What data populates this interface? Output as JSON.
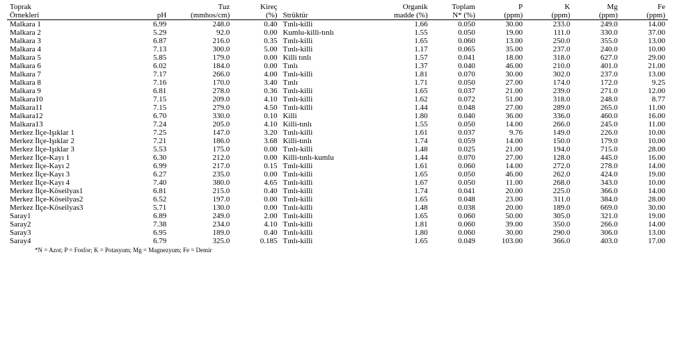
{
  "table": {
    "columns": [
      {
        "key": "name",
        "line1": "Toprak",
        "line2": "Örnekleri",
        "align": "left",
        "col_class": "c-name"
      },
      {
        "key": "ph",
        "line1": "",
        "line2": "pH",
        "align": "right",
        "col_class": "c-ph"
      },
      {
        "key": "tuz",
        "line1": "Tuz",
        "line2": "(mmhos/cm)",
        "align": "right",
        "col_class": "c-tuz"
      },
      {
        "key": "kirec",
        "line1": "Kireç",
        "line2": "(%)",
        "align": "right",
        "col_class": "c-kirec"
      },
      {
        "key": "struk",
        "line1": "",
        "line2": "Strüktür",
        "align": "left",
        "col_class": "c-struk"
      },
      {
        "key": "org",
        "line1": "Organik",
        "line2": "madde (%)",
        "align": "right",
        "col_class": "c-org",
        "line2a": "madde",
        "line2b": "(%)"
      },
      {
        "key": "n",
        "line1": "Toplam",
        "line2": "N* (%)",
        "align": "right",
        "col_class": "c-n",
        "line2a": "N*",
        "line2b": "(%)"
      },
      {
        "key": "p",
        "line1": "P",
        "line2": "(ppm)",
        "align": "right",
        "col_class": "c-p"
      },
      {
        "key": "k",
        "line1": "K",
        "line2": "(ppm)",
        "align": "right",
        "col_class": "c-k"
      },
      {
        "key": "mg",
        "line1": "Mg",
        "line2": "(ppm)",
        "align": "right",
        "col_class": "c-mg"
      },
      {
        "key": "fe",
        "line1": "Fe",
        "line2": "(ppm)",
        "align": "right",
        "col_class": "c-fe"
      }
    ],
    "header_lines": {
      "org_l1": "Organik",
      "org_l2a": "madde",
      "org_l2b": "(%)",
      "n_l1": "Toplam",
      "n_l2a": "N*",
      "n_l2b": "(%)"
    },
    "rows": [
      [
        "Malkara 1",
        "6.99",
        "248.0",
        "0.40",
        "Tınlı-killi",
        "1.66",
        "0.050",
        "30.00",
        "233.0",
        "249.0",
        "14.00"
      ],
      [
        "Malkara 2",
        "5.29",
        "92.0",
        "0.00",
        "Kumlu-killi-tınlı",
        "1.55",
        "0.050",
        "19.00",
        "111.0",
        "330.0",
        "37.00"
      ],
      [
        "Malkara 3",
        "6.87",
        "216.0",
        "0.35",
        "Tınlı-killi",
        "1.65",
        "0.060",
        "13.00",
        "250.0",
        "355.0",
        "13.00"
      ],
      [
        "Malkara 4",
        "7.13",
        "300.0",
        "5.00",
        "Tınlı-killi",
        "1.17",
        "0.065",
        "35.00",
        "237.0",
        "240.0",
        "10.00"
      ],
      [
        "Malkara 5",
        "5.85",
        "179.0",
        "0.00",
        "Killi tınlı",
        "1.57",
        "0.041",
        "18.00",
        "318.0",
        "627.0",
        "29.00"
      ],
      [
        "Malkara 6",
        "6.02",
        "184.0",
        "0.00",
        "Tınlı",
        "1.37",
        "0.040",
        "46.00",
        "210.0",
        "401.0",
        "21.00"
      ],
      [
        "Malkara 7",
        "7.17",
        "266.0",
        "4.00",
        "Tınlı-killi",
        "1.81",
        "0.070",
        "30.00",
        "302.0",
        "237.0",
        "13.00"
      ],
      [
        "Malkara 8",
        "7.16",
        "170.0",
        "3.40",
        "Tınlı",
        "1.71",
        "0.050",
        "27.00",
        "174.0",
        "172.0",
        "9.25"
      ],
      [
        "Malkara 9",
        "6.81",
        "278.0",
        "0.36",
        "Tınlı-killi",
        "1.65",
        "0.037",
        "21.00",
        "239.0",
        "271.0",
        "12.00"
      ],
      [
        "Malkara10",
        "7.15",
        "209.0",
        "4.10",
        "Tınlı-killi",
        "1.62",
        "0.072",
        "51.00",
        "318.0",
        "248.0",
        "8.77"
      ],
      [
        "Malkara11",
        "7.15",
        "279.0",
        "4.50",
        "Tınlı-killi",
        "1.44",
        "0.048",
        "27.00",
        "289.0",
        "265.0",
        "11.00"
      ],
      [
        "Malkara12",
        "6.70",
        "330.0",
        "0.10",
        "Killi",
        "1.80",
        "0.040",
        "36.00",
        "336.0",
        "460.0",
        "16.00"
      ],
      [
        "Malkara13",
        "7.24",
        "205.0",
        "4.10",
        "Killi-tınlı",
        "1.55",
        "0.050",
        "14.00",
        "266.0",
        "245.0",
        "11.00"
      ],
      [
        "Merkez İlçe-Işıklar 1",
        "7.25",
        "147.0",
        "3.20",
        "Tınlı-killi",
        "1.61",
        "0.037",
        "9.76",
        "149.0",
        "226.0",
        "10.00"
      ],
      [
        "Merkez İlçe-Işıklar 2",
        "7.21",
        "186.0",
        "3.68",
        "Killi-tınlı",
        "1.74",
        "0.059",
        "14.00",
        "150.0",
        "179.0",
        "10.00"
      ],
      [
        "Merkez İlçe-Işıklar 3",
        "5.53",
        "175.0",
        "0.00",
        "Tınlı-killi",
        "1.48",
        "0.025",
        "21.00",
        "194.0",
        "715.0",
        "28.00"
      ],
      [
        "Merkez İlçe-Kayı 1",
        "6.30",
        "212.0",
        "0.00",
        "Killi-tınlı-kumlu",
        "1.44",
        "0.070",
        "27.00",
        "128.0",
        "445.0",
        "16.00"
      ],
      [
        "Merkez İlçe-Kayı 2",
        "6.99",
        "217.0",
        "0.15",
        "Tınlı-killi",
        "1.61",
        "0.060",
        "14.00",
        "272.0",
        "278.0",
        "14.00"
      ],
      [
        "Merkez İlçe-Kayı 3",
        "6.27",
        "235.0",
        "0.00",
        "Tınlı-killi",
        "1.65",
        "0.050",
        "46.00",
        "262.0",
        "424.0",
        "19.00"
      ],
      [
        "Merkez İlçe-Kayı 4",
        "7.40",
        "380.0",
        "4.65",
        "Tınlı-killi",
        "1.67",
        "0.050",
        "11.00",
        "268.0",
        "343.0",
        "10.00"
      ],
      [
        "Merkez İlçe-Köseilyas1",
        "6.81",
        "215.0",
        "0.40",
        "Tınlı-killi",
        "1.74",
        "0.041",
        "20.00",
        "225.0",
        "366.0",
        "14.00"
      ],
      [
        "Merkez İlçe-Köseilyas2",
        "6.52",
        "197.0",
        "0.00",
        "Tınlı-killi",
        "1.65",
        "0.048",
        "23.00",
        "311.0",
        "384.0",
        "28.00"
      ],
      [
        "Merkez İlçe-Köseilyas3",
        "5.71",
        "130.0",
        "0.00",
        "Tınlı-killi",
        "1.48",
        "0.038",
        "20.00",
        "189.0",
        "669.0",
        "30.00"
      ],
      [
        "Saray1",
        "6.89",
        "249.0",
        "2.00",
        "Tınlı-killi",
        "1.65",
        "0.060",
        "50.00",
        "305.0",
        "321.0",
        "19.00"
      ],
      [
        "Saray2",
        "7.38",
        "234.0",
        "4.10",
        "Tınlı-killi",
        "1.81",
        "0.060",
        "39.00",
        "350.0",
        "266.0",
        "14.00"
      ],
      [
        "Saray3",
        "6.95",
        "189.0",
        "0.40",
        "Tınlı-killi",
        "1.80",
        "0.060",
        "30.00",
        "290.0",
        "306.0",
        "13.00"
      ],
      [
        "Saray4",
        "6.79",
        "325.0",
        "0.185",
        "Tınlı-killi",
        "1.65",
        "0.049",
        "103.00",
        "366.0",
        "403.0",
        "17.00"
      ]
    ]
  },
  "footnote": "*N = Azot;   P = Fosfor;   K = Potasyum;   Mg = Magnezyum;   Fe = Demir",
  "styling": {
    "font_family": "Times New Roman",
    "font_size_pt": 9,
    "text_color": "#000000",
    "background_color": "#ffffff",
    "border_color": "#000000"
  }
}
